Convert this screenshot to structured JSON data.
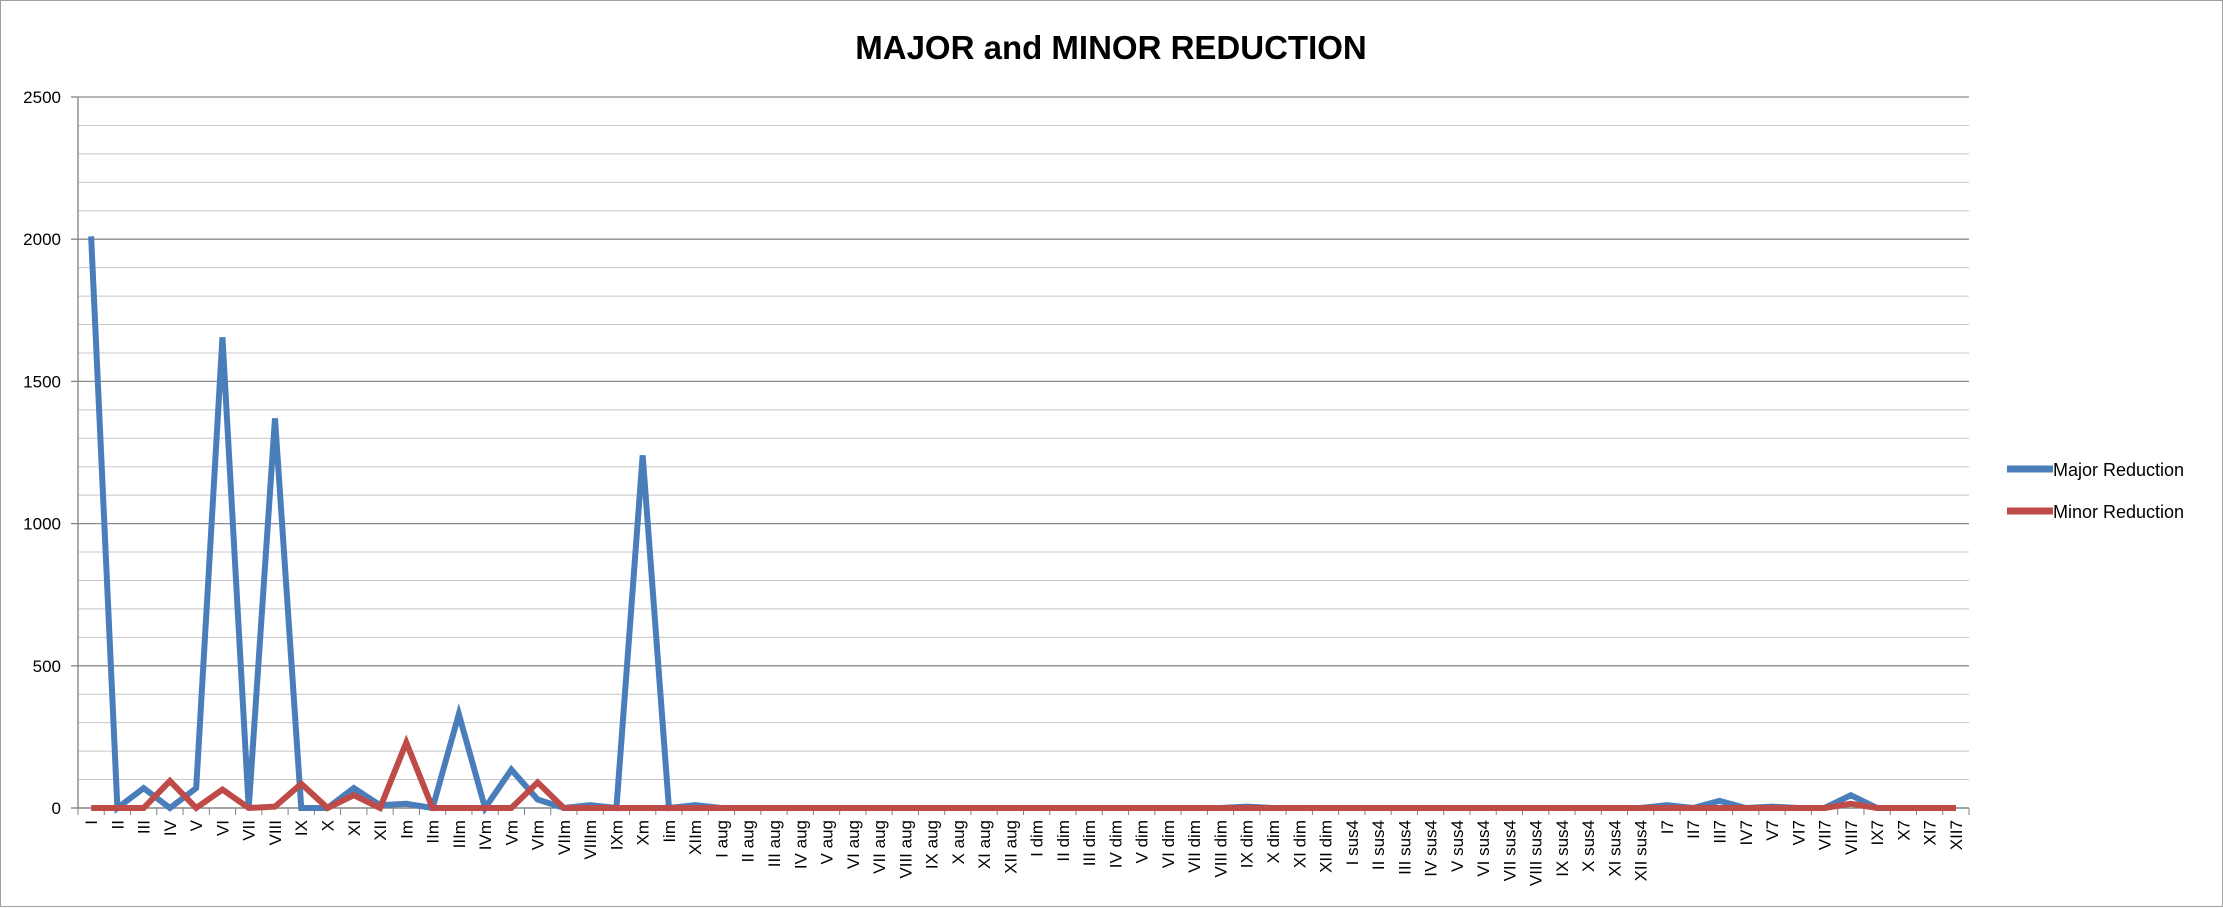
{
  "chart_data": {
    "type": "line",
    "title": "MAJOR and MINOR REDUCTION",
    "xlabel": "",
    "ylabel": "",
    "ylim": [
      0,
      2500
    ],
    "y_ticks": [
      0,
      500,
      1000,
      1500,
      2000,
      2500
    ],
    "y_minor_step": 100,
    "grid": true,
    "legend_position": "right",
    "categories": [
      "I",
      "II",
      "III",
      "IV",
      "V",
      "VI",
      "VII",
      "VIII",
      "IX",
      "X",
      "XI",
      "XII",
      "Im",
      "IIm",
      "IIIm",
      "IVm",
      "Vm",
      "VIm",
      "VIIm",
      "VIIIm",
      "IXm",
      "Xm",
      "Iim",
      "XIIm",
      "I aug",
      "II aug",
      "III aug",
      "IV aug",
      "V aug",
      "VI aug",
      "VII aug",
      "VIII aug",
      "IX aug",
      "X aug",
      "XI aug",
      "XII aug",
      "I dim",
      "II dim",
      "III dim",
      "IV dim",
      "V dim",
      "VI dim",
      "VII dim",
      "VIII dim",
      "IX dim",
      "X dim",
      "XI dim",
      "XII dim",
      "I sus4",
      "II sus4",
      "III sus4",
      "IV sus4",
      "V sus4",
      "VI sus4",
      "VII sus4",
      "VIII sus4",
      "IX sus4",
      "X sus4",
      "XI sus4",
      "XII sus4",
      "I7",
      "II7",
      "III7",
      "IV7",
      "V7",
      "VI7",
      "VII7",
      "VIII7",
      "IX7",
      "X7",
      "XI7",
      "XII7"
    ],
    "series": [
      {
        "name": "Major Reduction",
        "color": "#4a7ebb",
        "values": [
          2010,
          0,
          70,
          0,
          70,
          1655,
          0,
          1370,
          0,
          0,
          70,
          10,
          15,
          0,
          330,
          0,
          135,
          30,
          0,
          10,
          0,
          1240,
          0,
          10,
          0,
          0,
          0,
          0,
          0,
          0,
          0,
          0,
          0,
          0,
          0,
          0,
          0,
          0,
          0,
          0,
          0,
          0,
          0,
          0,
          5,
          0,
          0,
          0,
          0,
          0,
          0,
          0,
          0,
          0,
          0,
          0,
          0,
          0,
          0,
          0,
          10,
          0,
          25,
          0,
          5,
          0,
          0,
          45,
          0,
          0,
          0,
          0
        ]
      },
      {
        "name": "Minor Reduction",
        "color": "#be4b48",
        "values": [
          0,
          0,
          0,
          95,
          0,
          65,
          0,
          5,
          85,
          0,
          45,
          0,
          230,
          0,
          0,
          0,
          0,
          90,
          0,
          0,
          0,
          0,
          0,
          0,
          0,
          0,
          0,
          0,
          0,
          0,
          0,
          0,
          0,
          0,
          0,
          0,
          0,
          0,
          0,
          0,
          0,
          0,
          0,
          0,
          0,
          0,
          0,
          0,
          0,
          0,
          0,
          0,
          0,
          0,
          0,
          0,
          0,
          0,
          0,
          0,
          0,
          0,
          0,
          0,
          0,
          0,
          0,
          15,
          0,
          0,
          0,
          0
        ]
      }
    ]
  }
}
